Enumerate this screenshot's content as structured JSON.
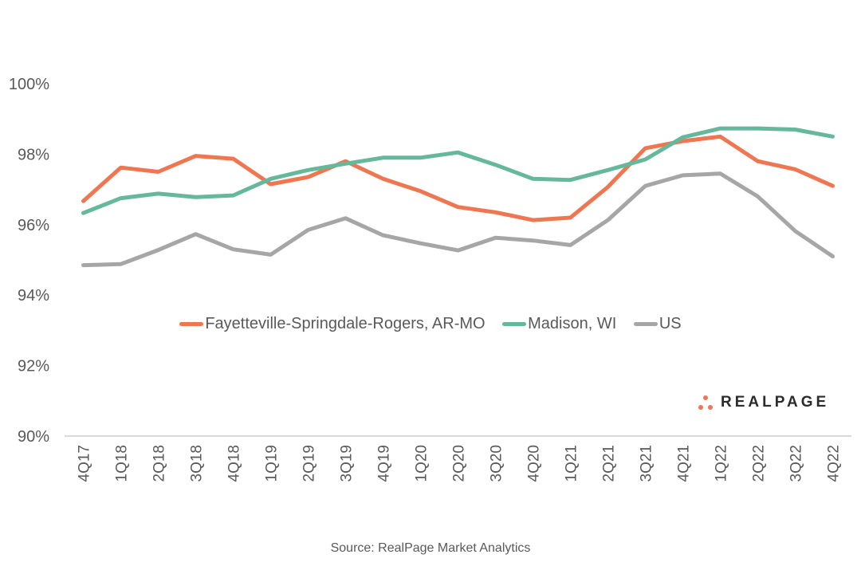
{
  "chart_data": {
    "type": "line",
    "title": "",
    "xlabel": "",
    "ylabel": "",
    "ylim": [
      90,
      100
    ],
    "y_ticks": [
      "90%",
      "92%",
      "94%",
      "96%",
      "98%",
      "100%"
    ],
    "y_tick_values": [
      90,
      92,
      94,
      96,
      98,
      100
    ],
    "grid": false,
    "legend_position": "center",
    "categories": [
      "4Q17",
      "1Q18",
      "2Q18",
      "3Q18",
      "4Q18",
      "1Q19",
      "2Q19",
      "3Q19",
      "4Q19",
      "1Q20",
      "2Q20",
      "3Q20",
      "4Q20",
      "1Q21",
      "2Q21",
      "3Q21",
      "4Q21",
      "1Q22",
      "2Q22",
      "3Q22",
      "4Q22"
    ],
    "series": [
      {
        "name": "Fayetteville-Springdale-Rogers, AR-MO",
        "color": "#EE7752",
        "values": [
          96.67,
          97.62,
          97.5,
          97.95,
          97.87,
          97.15,
          97.35,
          97.8,
          97.3,
          96.95,
          96.5,
          96.35,
          96.13,
          96.2,
          97.07,
          98.17,
          98.37,
          98.5,
          97.8,
          97.57,
          97.1
        ]
      },
      {
        "name": "Madison, WI",
        "color": "#66B89C",
        "values": [
          96.33,
          96.75,
          96.88,
          96.78,
          96.83,
          97.3,
          97.55,
          97.73,
          97.9,
          97.9,
          98.05,
          97.7,
          97.3,
          97.27,
          97.55,
          97.85,
          98.48,
          98.73,
          98.73,
          98.7,
          98.5
        ]
      },
      {
        "name": "US",
        "color": "#A6A6A6",
        "values": [
          94.85,
          94.88,
          95.28,
          95.73,
          95.3,
          95.15,
          95.85,
          96.18,
          95.7,
          95.47,
          95.27,
          95.63,
          95.55,
          95.42,
          96.13,
          97.1,
          97.4,
          97.45,
          96.8,
          95.82,
          95.1
        ]
      }
    ]
  },
  "logo": {
    "text": "REALPAGE",
    "icon": "dots-icon",
    "color": "#EE7752"
  },
  "source": "Source: RealPage Market Analytics"
}
